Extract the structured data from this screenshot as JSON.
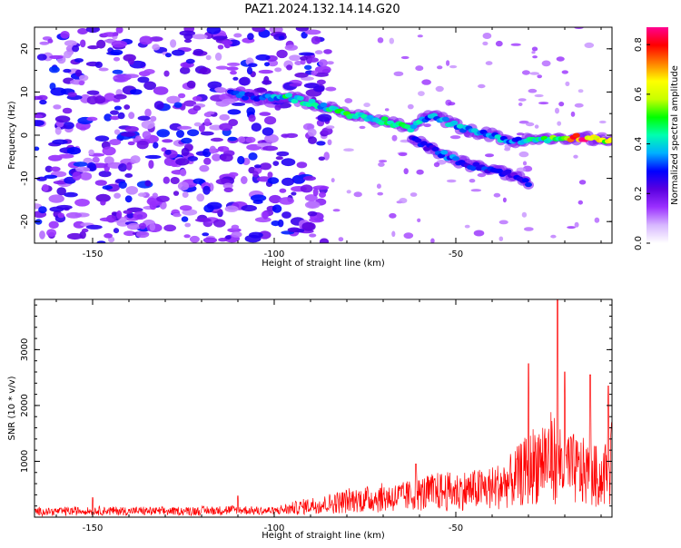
{
  "title": "PAZ1.2024.132.14.14.G20",
  "chart_data": [
    {
      "type": "heatmap",
      "title": "PAZ1.2024.132.14.14.G20",
      "xlabel": "Height of straight line (km)",
      "ylabel": "Frequency (Hz)",
      "xlim": [
        -166,
        -7
      ],
      "ylim": [
        -25,
        25
      ],
      "x_ticks": [
        -150,
        -100,
        -50
      ],
      "y_ticks": [
        -20,
        -10,
        0,
        10,
        20
      ],
      "colorbar": {
        "label": "Normalized spectral amplitude",
        "range": [
          0,
          0.87
        ],
        "ticks": [
          0.0,
          0.2,
          0.4,
          0.6,
          0.8
        ],
        "colormap": [
          "#ffffff",
          "#d8b8ff",
          "#9b30ff",
          "#5a00e0",
          "#0000ff",
          "#00b0ff",
          "#00ffb0",
          "#00ff00",
          "#c8ff00",
          "#ffff00",
          "#ff8000",
          "#ff0000",
          "#ff0090"
        ]
      },
      "signal_ridge": {
        "x": [
          -112,
          -105,
          -97,
          -90,
          -82,
          -75,
          -68,
          -62,
          -57,
          -52,
          -46,
          -40,
          -34,
          -28,
          -22,
          -16,
          -11,
          -7
        ],
        "y": [
          10,
          8.5,
          9,
          7.5,
          5.5,
          4,
          3,
          1.5,
          5,
          3,
          1,
          0,
          -1.5,
          -1,
          -1,
          -0.5,
          -1,
          -1.5
        ],
        "amplitude": [
          0.35,
          0.3,
          0.45,
          0.4,
          0.5,
          0.45,
          0.5,
          0.45,
          0.35,
          0.4,
          0.35,
          0.4,
          0.35,
          0.45,
          0.55,
          0.85,
          0.7,
          0.6
        ]
      },
      "secondary_ridge": {
        "x": [
          -62,
          -57,
          -52,
          -46,
          -40,
          -35,
          -30
        ],
        "y": [
          -1,
          -3,
          -5,
          -7,
          -8,
          -9,
          -11
        ],
        "amplitude": [
          0.3,
          0.3,
          0.35,
          0.3,
          0.3,
          0.25,
          0.3
        ]
      }
    },
    {
      "type": "line",
      "xlabel": "Height of straight line (km)",
      "ylabel": "SNR (10 * v/v)",
      "xlim": [
        -166,
        -7
      ],
      "ylim": [
        0,
        3900
      ],
      "x_ticks": [
        -150,
        -100,
        -50
      ],
      "y_ticks": [
        1000,
        2000,
        3000
      ],
      "series_color": "#ff0000",
      "envelope": {
        "x": [
          -166,
          -150,
          -130,
          -110,
          -100,
          -95,
          -90,
          -85,
          -80,
          -75,
          -70,
          -65,
          -60,
          -55,
          -50,
          -45,
          -40,
          -35,
          -30,
          -27,
          -24,
          -22,
          -20,
          -18,
          -15,
          -12,
          -10,
          -9,
          -8,
          -7
        ],
        "y": [
          150,
          180,
          160,
          200,
          170,
          250,
          350,
          400,
          500,
          550,
          600,
          620,
          700,
          800,
          800,
          850,
          900,
          1100,
          1500,
          1800,
          1900,
          1800,
          1700,
          1500,
          1400,
          1300,
          1200,
          1400,
          1500,
          1600
        ]
      },
      "peaks": [
        {
          "x": -150,
          "y": 350
        },
        {
          "x": -110,
          "y": 380
        },
        {
          "x": -61,
          "y": 950
        },
        {
          "x": -30,
          "y": 2750
        },
        {
          "x": -22,
          "y": 3900
        },
        {
          "x": -20,
          "y": 2600
        },
        {
          "x": -13,
          "y": 2550
        },
        {
          "x": -8,
          "y": 2350
        },
        {
          "x": -7,
          "y": 1700
        }
      ]
    }
  ]
}
